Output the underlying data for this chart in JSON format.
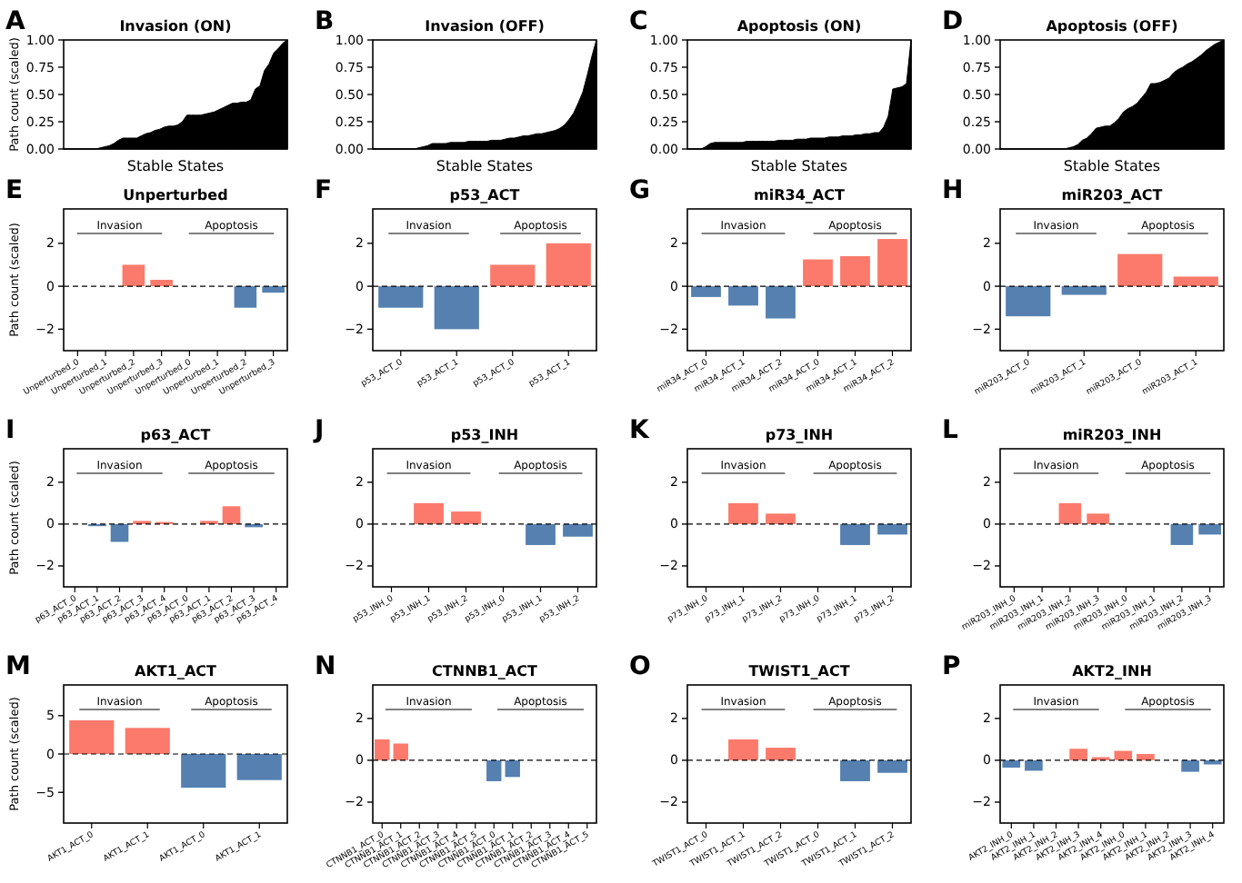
{
  "chart_data": [
    {
      "type": "area",
      "title": "Invasion (ON)",
      "xlabel": "Stable States",
      "ylabel": "Path count (scaled)",
      "annotations": [
        "A"
      ],
      "tick_labels": "y",
      "color": "#000000",
      "ylim": [
        0,
        1
      ],
      "yticks": [
        {
          "value": 0,
          "label": "0.00"
        },
        {
          "value": 0.25,
          "label": "0.25"
        },
        {
          "value": 0.5,
          "label": "0.50"
        },
        {
          "value": 0.75,
          "label": "0.75"
        },
        {
          "value": 1,
          "label": "1.00"
        }
      ],
      "categories": [
        null,
        null,
        null,
        null,
        null,
        null,
        null,
        null,
        null,
        null,
        null,
        null,
        null,
        null,
        null,
        null,
        null,
        null,
        null,
        null,
        null,
        null,
        null,
        null,
        null,
        null,
        null,
        null,
        null,
        null,
        null,
        null,
        null,
        null,
        null,
        null,
        null,
        null,
        null,
        null,
        null,
        null,
        null,
        null,
        null,
        null,
        null,
        null,
        null,
        null
      ],
      "values": [
        0,
        0,
        0,
        0,
        0,
        0,
        0,
        0,
        0.01,
        0.02,
        0.03,
        0.05,
        0.08,
        0.1,
        0.1,
        0.1,
        0.1,
        0.12,
        0.14,
        0.15,
        0.17,
        0.18,
        0.2,
        0.21,
        0.21,
        0.22,
        0.25,
        0.31,
        0.31,
        0.31,
        0.31,
        0.32,
        0.33,
        0.34,
        0.36,
        0.38,
        0.4,
        0.42,
        0.42,
        0.43,
        0.43,
        0.45,
        0.55,
        0.58,
        0.72,
        0.78,
        0.88,
        0.92,
        0.97,
        1
      ]
    },
    {
      "type": "area",
      "title": "Invasion (OFF)",
      "xlabel": "Stable States",
      "annotations": [
        "B"
      ],
      "tick_labels": "y",
      "color": "#000000",
      "ylim": [
        0,
        1
      ],
      "yticks": [
        {
          "value": 0,
          "label": "0.00"
        },
        {
          "value": 0.25,
          "label": "0.25"
        },
        {
          "value": 0.5,
          "label": "0.50"
        },
        {
          "value": 0.75,
          "label": "0.75"
        },
        {
          "value": 1,
          "label": "1.00"
        }
      ],
      "categories": [
        null,
        null,
        null,
        null,
        null,
        null,
        null,
        null,
        null,
        null,
        null,
        null,
        null,
        null,
        null,
        null,
        null,
        null,
        null,
        null,
        null,
        null,
        null,
        null,
        null,
        null,
        null,
        null,
        null,
        null,
        null,
        null,
        null,
        null,
        null,
        null,
        null,
        null,
        null,
        null,
        null,
        null,
        null,
        null,
        null,
        null,
        null,
        null,
        null,
        null
      ],
      "values": [
        0,
        0,
        0,
        0,
        0,
        0,
        0,
        0,
        0,
        0,
        0.01,
        0.02,
        0.03,
        0.05,
        0.05,
        0.05,
        0.05,
        0.06,
        0.06,
        0.06,
        0.06,
        0.07,
        0.07,
        0.07,
        0.07,
        0.07,
        0.08,
        0.08,
        0.08,
        0.09,
        0.1,
        0.1,
        0.11,
        0.12,
        0.12,
        0.13,
        0.14,
        0.14,
        0.15,
        0.16,
        0.17,
        0.19,
        0.22,
        0.27,
        0.33,
        0.42,
        0.52,
        0.68,
        0.85,
        1
      ]
    },
    {
      "type": "area",
      "title": "Apoptosis (ON)",
      "xlabel": "Stable States",
      "annotations": [
        "C"
      ],
      "tick_labels": "y",
      "color": "#000000",
      "ylim": [
        0,
        1
      ],
      "yticks": [
        {
          "value": 0,
          "label": "0.00"
        },
        {
          "value": 0.25,
          "label": "0.25"
        },
        {
          "value": 0.5,
          "label": "0.50"
        },
        {
          "value": 0.75,
          "label": "0.75"
        },
        {
          "value": 1,
          "label": "1.00"
        }
      ],
      "categories": [
        null,
        null,
        null,
        null,
        null,
        null,
        null,
        null,
        null,
        null,
        null,
        null,
        null,
        null,
        null,
        null,
        null,
        null,
        null,
        null,
        null,
        null,
        null,
        null,
        null,
        null,
        null,
        null,
        null,
        null,
        null,
        null,
        null,
        null,
        null,
        null,
        null,
        null,
        null,
        null,
        null,
        null,
        null,
        null,
        null,
        null,
        null,
        null,
        null,
        null
      ],
      "values": [
        0,
        0,
        0,
        0,
        0.02,
        0.05,
        0.06,
        0.06,
        0.06,
        0.06,
        0.06,
        0.06,
        0.06,
        0.07,
        0.07,
        0.07,
        0.07,
        0.07,
        0.07,
        0.07,
        0.08,
        0.08,
        0.08,
        0.08,
        0.09,
        0.09,
        0.09,
        0.1,
        0.1,
        0.1,
        0.1,
        0.11,
        0.11,
        0.11,
        0.12,
        0.12,
        0.12,
        0.13,
        0.13,
        0.14,
        0.14,
        0.15,
        0.15,
        0.2,
        0.3,
        0.55,
        0.56,
        0.57,
        0.6,
        1
      ]
    },
    {
      "type": "area",
      "title": "Apoptosis (OFF)",
      "xlabel": "Stable States",
      "annotations": [
        "D"
      ],
      "tick_labels": "y",
      "color": "#000000",
      "ylim": [
        0,
        1
      ],
      "yticks": [
        {
          "value": 0,
          "label": "0.00"
        },
        {
          "value": 0.25,
          "label": "0.25"
        },
        {
          "value": 0.5,
          "label": "0.50"
        },
        {
          "value": 0.75,
          "label": "0.75"
        },
        {
          "value": 1,
          "label": "1.00"
        }
      ],
      "categories": [
        null,
        null,
        null,
        null,
        null,
        null,
        null,
        null,
        null,
        null,
        null,
        null,
        null,
        null,
        null,
        null,
        null,
        null,
        null,
        null,
        null,
        null,
        null,
        null,
        null,
        null,
        null,
        null,
        null,
        null,
        null,
        null,
        null,
        null,
        null,
        null,
        null,
        null,
        null,
        null,
        null,
        null,
        null,
        null,
        null,
        null,
        null,
        null,
        null,
        null
      ],
      "values": [
        0,
        0,
        0,
        0,
        0,
        0,
        0,
        0,
        0,
        0,
        0,
        0,
        0,
        0,
        0,
        0.01,
        0.02,
        0.04,
        0.08,
        0.1,
        0.14,
        0.19,
        0.2,
        0.21,
        0.21,
        0.24,
        0.28,
        0.34,
        0.37,
        0.39,
        0.42,
        0.47,
        0.52,
        0.6,
        0.6,
        0.61,
        0.63,
        0.65,
        0.7,
        0.73,
        0.75,
        0.78,
        0.8,
        0.83,
        0.86,
        0.9,
        0.93,
        0.96,
        0.98,
        1
      ]
    },
    {
      "type": "bar",
      "title": "Unperturbed",
      "ylabel": "Path count (scaled)",
      "annotations": [
        "E",
        "Invasion",
        "Apoptosis"
      ],
      "ylim": [
        -3,
        3.6
      ],
      "yticks": [
        {
          "value": -2,
          "label": "−2"
        },
        0,
        2
      ],
      "ref_lines": [
        {
          "axis": "y",
          "value": 0,
          "line_style": "dashed",
          "color": "#000000"
        }
      ],
      "categories": [
        "Unperturbed_0",
        "Unperturbed_1",
        "Unperturbed_2",
        "Unperturbed_3",
        "Unperturbed_0",
        "Unperturbed_1",
        "Unperturbed_2",
        "Unperturbed_3"
      ],
      "values": [
        0,
        0,
        1,
        0.3,
        0,
        0,
        -1,
        -0.3
      ],
      "colors": [
        "#fb7a6b",
        "#fb7a6b",
        "#fb7a6b",
        "#fb7a6b",
        "#fb7a6b",
        "#fb7a6b",
        "#5580b0",
        "#5580b0"
      ]
    },
    {
      "type": "bar",
      "title": "p53_ACT",
      "annotations": [
        "F",
        "Invasion",
        "Apoptosis"
      ],
      "ylim": [
        -3,
        3.6
      ],
      "yticks": [
        {
          "value": -2,
          "label": "−2"
        },
        0,
        2
      ],
      "ref_lines": [
        {
          "axis": "y",
          "value": 0,
          "line_style": "dashed",
          "color": "#000000"
        }
      ],
      "categories": [
        "p53_ACT_0",
        "p53_ACT_1",
        "p53_ACT_0",
        "p53_ACT_1"
      ],
      "values": [
        -1,
        -2,
        1,
        2
      ],
      "colors": [
        "#5580b0",
        "#5580b0",
        "#fb7a6b",
        "#fb7a6b"
      ]
    },
    {
      "type": "bar",
      "title": "miR34_ACT",
      "annotations": [
        "G",
        "Invasion",
        "Apoptosis"
      ],
      "ylim": [
        -3,
        3.6
      ],
      "yticks": [
        {
          "value": -2,
          "label": "−2"
        },
        0,
        2
      ],
      "ref_lines": [
        {
          "axis": "y",
          "value": 0,
          "line_style": "dashed",
          "color": "#000000"
        }
      ],
      "categories": [
        "miR34_ACT_0",
        "miR34_ACT_1",
        "miR34_ACT_2",
        "miR34_ACT_0",
        "miR34_ACT_1",
        "miR34_ACT_2"
      ],
      "values": [
        -0.5,
        -0.9,
        -1.5,
        1.25,
        1.4,
        2.2
      ],
      "colors": [
        "#5580b0",
        "#5580b0",
        "#5580b0",
        "#fb7a6b",
        "#fb7a6b",
        "#fb7a6b"
      ]
    },
    {
      "type": "bar",
      "title": "miR203_ACT",
      "annotations": [
        "H",
        "Invasion",
        "Apoptosis"
      ],
      "ylim": [
        -3,
        3.6
      ],
      "yticks": [
        {
          "value": -2,
          "label": "−2"
        },
        0,
        2
      ],
      "ref_lines": [
        {
          "axis": "y",
          "value": 0,
          "line_style": "dashed",
          "color": "#000000"
        }
      ],
      "categories": [
        "miR203_ACT_0",
        "miR203_ACT_1",
        "miR203_ACT_0",
        "miR203_ACT_1"
      ],
      "values": [
        -1.4,
        -0.4,
        1.5,
        0.45
      ],
      "colors": [
        "#5580b0",
        "#5580b0",
        "#fb7a6b",
        "#fb7a6b"
      ]
    },
    {
      "type": "bar",
      "title": "p63_ACT",
      "ylabel": "Path count (scaled)",
      "annotations": [
        "I",
        "Invasion",
        "Apoptosis"
      ],
      "ylim": [
        -3,
        3.6
      ],
      "yticks": [
        {
          "value": -2,
          "label": "−2"
        },
        0,
        2
      ],
      "ref_lines": [
        {
          "axis": "y",
          "value": 0,
          "line_style": "dashed",
          "color": "#000000"
        }
      ],
      "categories": [
        "p63_ACT_0",
        "p63_ACT_1",
        "p63_ACT_2",
        "p63_ACT_3",
        "p63_ACT_4",
        "p63_ACT_0",
        "p63_ACT_1",
        "p63_ACT_2",
        "p63_ACT_3",
        "p63_ACT_4"
      ],
      "values": [
        0,
        -0.1,
        -0.85,
        0.15,
        0.1,
        0,
        0.15,
        0.85,
        -0.15,
        0
      ],
      "colors": [
        "#5580b0",
        "#5580b0",
        "#5580b0",
        "#fb7a6b",
        "#fb7a6b",
        "#fb7a6b",
        "#fb7a6b",
        "#fb7a6b",
        "#5580b0",
        "#5580b0"
      ]
    },
    {
      "type": "bar",
      "title": "p53_INH",
      "annotations": [
        "J",
        "Invasion",
        "Apoptosis"
      ],
      "ylim": [
        -3,
        3.6
      ],
      "yticks": [
        {
          "value": -2,
          "label": "−2"
        },
        0,
        2
      ],
      "ref_lines": [
        {
          "axis": "y",
          "value": 0,
          "line_style": "dashed",
          "color": "#000000"
        }
      ],
      "categories": [
        "p53_INH_0",
        "p53_INH_1",
        "p53_INH_2",
        "p53_INH_0",
        "p53_INH_1",
        "p53_INH_2"
      ],
      "values": [
        0,
        1,
        0.6,
        0,
        -1,
        -0.6
      ],
      "colors": [
        "#fb7a6b",
        "#fb7a6b",
        "#fb7a6b",
        "#fb7a6b",
        "#5580b0",
        "#5580b0"
      ]
    },
    {
      "type": "bar",
      "title": "p73_INH",
      "annotations": [
        "K",
        "Invasion",
        "Apoptosis"
      ],
      "ylim": [
        -3,
        3.6
      ],
      "yticks": [
        {
          "value": -2,
          "label": "−2"
        },
        0,
        2
      ],
      "ref_lines": [
        {
          "axis": "y",
          "value": 0,
          "line_style": "dashed",
          "color": "#000000"
        }
      ],
      "categories": [
        "p73_INH_0",
        "p73_INH_1",
        "p73_INH_2",
        "p73_INH_0",
        "p73_INH_1",
        "p73_INH_2"
      ],
      "values": [
        0,
        1,
        0.5,
        0,
        -1,
        -0.5
      ],
      "colors": [
        "#fb7a6b",
        "#fb7a6b",
        "#fb7a6b",
        "#fb7a6b",
        "#5580b0",
        "#5580b0"
      ]
    },
    {
      "type": "bar",
      "title": "miR203_INH",
      "annotations": [
        "L",
        "Invasion",
        "Apoptosis"
      ],
      "ylim": [
        -3,
        3.6
      ],
      "yticks": [
        {
          "value": -2,
          "label": "−2"
        },
        0,
        2
      ],
      "ref_lines": [
        {
          "axis": "y",
          "value": 0,
          "line_style": "dashed",
          "color": "#000000"
        }
      ],
      "categories": [
        "miR203_INH_0",
        "miR203_INH_1",
        "miR203_INH_2",
        "miR203_INH_3",
        "miR203_INH_0",
        "miR203_INH_1",
        "miR203_INH_2",
        "miR203_INH_3"
      ],
      "values": [
        0,
        0,
        1,
        0.5,
        0,
        0,
        -1,
        -0.5
      ],
      "colors": [
        "#fb7a6b",
        "#fb7a6b",
        "#fb7a6b",
        "#fb7a6b",
        "#fb7a6b",
        "#fb7a6b",
        "#5580b0",
        "#5580b0"
      ]
    },
    {
      "type": "bar",
      "title": "AKT1_ACT",
      "ylabel": "Path count (scaled)",
      "annotations": [
        "M",
        "Invasion",
        "Apoptosis"
      ],
      "ylim": [
        -9,
        9
      ],
      "yticks": [
        {
          "value": -5,
          "label": "−5"
        },
        0,
        5
      ],
      "ref_lines": [
        {
          "axis": "y",
          "value": 0,
          "line_style": "dashed",
          "color": "#000000"
        }
      ],
      "categories": [
        "AKT1_ACT_0",
        "AKT1_ACT_1",
        "AKT1_ACT_0",
        "AKT1_ACT_1"
      ],
      "values": [
        4.4,
        3.4,
        -4.4,
        -3.4
      ],
      "colors": [
        "#fb7a6b",
        "#fb7a6b",
        "#5580b0",
        "#5580b0"
      ]
    },
    {
      "type": "bar",
      "title": "CTNNB1_ACT",
      "annotations": [
        "N",
        "Invasion",
        "Apoptosis"
      ],
      "ylim": [
        -3,
        3.6
      ],
      "yticks": [
        {
          "value": -2,
          "label": "−2"
        },
        0,
        2
      ],
      "ref_lines": [
        {
          "axis": "y",
          "value": 0,
          "line_style": "dashed",
          "color": "#000000"
        }
      ],
      "categories": [
        "CTNNB1_ACT_0",
        "CTNNB1_ACT_1",
        "CTNNB1_ACT_2",
        "CTNNB1_ACT_3",
        "CTNNB1_ACT_4",
        "CTNNB1_ACT_5",
        "CTNNB1_ACT_0",
        "CTNNB1_ACT_1",
        "CTNNB1_ACT_2",
        "CTNNB1_ACT_3",
        "CTNNB1_ACT_4",
        "CTNNB1_ACT_5"
      ],
      "values": [
        1,
        0.8,
        0,
        0,
        0,
        0,
        -1,
        -0.8,
        0,
        0,
        0,
        0
      ],
      "colors": [
        "#fb7a6b",
        "#fb7a6b",
        "#fb7a6b",
        "#fb7a6b",
        "#fb7a6b",
        "#fb7a6b",
        "#5580b0",
        "#5580b0",
        "#5580b0",
        "#5580b0",
        "#5580b0",
        "#5580b0"
      ]
    },
    {
      "type": "bar",
      "title": "TWIST1_ACT",
      "annotations": [
        "O",
        "Invasion",
        "Apoptosis"
      ],
      "ylim": [
        -3,
        3.6
      ],
      "yticks": [
        {
          "value": -2,
          "label": "−2"
        },
        0,
        2
      ],
      "ref_lines": [
        {
          "axis": "y",
          "value": 0,
          "line_style": "dashed",
          "color": "#000000"
        }
      ],
      "categories": [
        "TWIST1_ACT_0",
        "TWIST1_ACT_1",
        "TWIST1_ACT_2",
        "TWIST1_ACT_0",
        "TWIST1_ACT_1",
        "TWIST1_ACT_2"
      ],
      "values": [
        0,
        1,
        0.6,
        0,
        -1,
        -0.6
      ],
      "colors": [
        "#fb7a6b",
        "#fb7a6b",
        "#fb7a6b",
        "#fb7a6b",
        "#5580b0",
        "#5580b0"
      ]
    },
    {
      "type": "bar",
      "title": "AKT2_INH",
      "annotations": [
        "P",
        "Invasion",
        "Apoptosis"
      ],
      "ylim": [
        -3,
        3.6
      ],
      "yticks": [
        {
          "value": -2,
          "label": "−2"
        },
        0,
        2
      ],
      "ref_lines": [
        {
          "axis": "y",
          "value": 0,
          "line_style": "dashed",
          "color": "#000000"
        }
      ],
      "categories": [
        "AKT2_INH_0",
        "AKT2_INH_1",
        "AKT2_INH_2",
        "AKT2_INH_3",
        "AKT2_INH_4",
        "AKT2_INH_0",
        "AKT2_INH_1",
        "AKT2_INH_2",
        "AKT2_INH_3",
        "AKT2_INH_4"
      ],
      "values": [
        -0.35,
        -0.5,
        0,
        0.55,
        0.15,
        0.45,
        0.3,
        0,
        -0.55,
        -0.2
      ],
      "colors": [
        "#5580b0",
        "#5580b0",
        "#fb7a6b",
        "#fb7a6b",
        "#fb7a6b",
        "#fb7a6b",
        "#fb7a6b",
        "#fb7a6b",
        "#5580b0",
        "#5580b0"
      ]
    }
  ]
}
